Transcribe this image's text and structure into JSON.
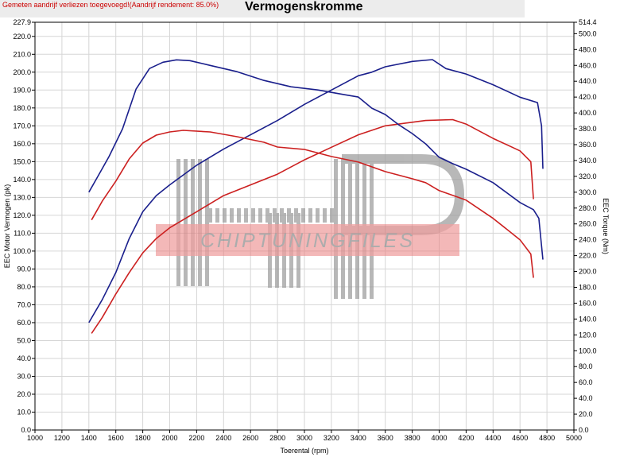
{
  "header": {
    "note": "Gemeten aandrijf verliezen toegevoegd!(Aandrijf rendement: 85.0%)",
    "title": "Vermogenskromme"
  },
  "watermark": {
    "text": "CHIPTUNINGFILES",
    "logo": "HP"
  },
  "colors": {
    "blue": "#1a1f8c",
    "red": "#cc2020",
    "grid": "#d6d6d6"
  },
  "chart_data": {
    "type": "line",
    "xlabel": "Toerental (rpm)",
    "ylabel": "EEC Motor Vermogen (pk)",
    "y2label": "EEC Torque (Nm)",
    "xlim": [
      1000,
      5000
    ],
    "ylim": [
      0,
      227.9
    ],
    "y2lim": [
      0,
      514.4
    ],
    "xticks": [
      "1000",
      "1200",
      "1400",
      "1600",
      "1800",
      "2000",
      "2200",
      "2400",
      "2600",
      "2800",
      "3000",
      "3200",
      "3400",
      "3600",
      "3800",
      "4000",
      "4200",
      "4400",
      "4600",
      "4800",
      "5000"
    ],
    "yticks": [
      "227.9",
      "220.0",
      "210.0",
      "200.0",
      "190.0",
      "180.0",
      "170.0",
      "160.0",
      "150.0",
      "140.0",
      "130.0",
      "120.0",
      "110.0",
      "100.0",
      "90.0",
      "80.0",
      "70.0",
      "60.0",
      "50.0",
      "40.0",
      "30.0",
      "20.0",
      "10.0",
      "0.0"
    ],
    "y2ticks": [
      "514.4",
      "500.0",
      "480.0",
      "460.0",
      "440.0",
      "420.0",
      "400.0",
      "380.0",
      "360.0",
      "340.0",
      "320.0",
      "300.0",
      "280.0",
      "260.0",
      "240.0",
      "220.0",
      "200.0",
      "180.0",
      "160.0",
      "140.0",
      "120.0",
      "100.0",
      "80.0",
      "60.0",
      "40.0",
      "20.0",
      "0.0"
    ],
    "series": [
      {
        "color": "#1a1f8c",
        "axis": "left",
        "points": [
          [
            1400,
            60
          ],
          [
            1500,
            73
          ],
          [
            1600,
            88
          ],
          [
            1700,
            107
          ],
          [
            1800,
            122
          ],
          [
            1900,
            131
          ],
          [
            2000,
            137
          ],
          [
            2200,
            148
          ],
          [
            2400,
            157
          ],
          [
            2600,
            165
          ],
          [
            2800,
            173
          ],
          [
            3000,
            182
          ],
          [
            3200,
            190
          ],
          [
            3400,
            198
          ],
          [
            3500,
            200
          ],
          [
            3600,
            203
          ],
          [
            3800,
            206
          ],
          [
            3950,
            207
          ],
          [
            4050,
            202
          ],
          [
            4200,
            199
          ],
          [
            4400,
            193
          ],
          [
            4600,
            186
          ],
          [
            4730,
            183
          ],
          [
            4760,
            170
          ],
          [
            4770,
            146
          ]
        ]
      },
      {
        "color": "#cc2020",
        "axis": "left",
        "points": [
          [
            1420,
            54
          ],
          [
            1500,
            63
          ],
          [
            1600,
            76
          ],
          [
            1700,
            88
          ],
          [
            1800,
            99
          ],
          [
            1900,
            107
          ],
          [
            2000,
            113
          ],
          [
            2200,
            122
          ],
          [
            2400,
            131
          ],
          [
            2600,
            137
          ],
          [
            2800,
            143
          ],
          [
            3000,
            151
          ],
          [
            3200,
            158
          ],
          [
            3400,
            165
          ],
          [
            3600,
            170
          ],
          [
            3800,
            172
          ],
          [
            3900,
            173
          ],
          [
            4100,
            173.5
          ],
          [
            4200,
            171
          ],
          [
            4400,
            163
          ],
          [
            4600,
            156
          ],
          [
            4680,
            150
          ],
          [
            4700,
            129
          ]
        ]
      },
      {
        "color": "#1a1f8c",
        "axis": "right",
        "points": [
          [
            1400,
            300
          ],
          [
            1450,
            315
          ],
          [
            1550,
            345
          ],
          [
            1650,
            380
          ],
          [
            1750,
            430
          ],
          [
            1850,
            456
          ],
          [
            1950,
            464
          ],
          [
            2050,
            467
          ],
          [
            2150,
            466
          ],
          [
            2300,
            460
          ],
          [
            2500,
            452
          ],
          [
            2700,
            441
          ],
          [
            2900,
            433
          ],
          [
            3100,
            429
          ],
          [
            3300,
            423
          ],
          [
            3400,
            420
          ],
          [
            3500,
            406
          ],
          [
            3600,
            398
          ],
          [
            3700,
            385
          ],
          [
            3800,
            374
          ],
          [
            3900,
            361
          ],
          [
            4000,
            344
          ],
          [
            4100,
            336
          ],
          [
            4200,
            329
          ],
          [
            4400,
            312
          ],
          [
            4600,
            287
          ],
          [
            4700,
            278
          ],
          [
            4740,
            267
          ],
          [
            4770,
            215
          ]
        ]
      },
      {
        "color": "#cc2020",
        "axis": "right",
        "points": [
          [
            1420,
            265
          ],
          [
            1500,
            289
          ],
          [
            1600,
            314
          ],
          [
            1700,
            342
          ],
          [
            1800,
            362
          ],
          [
            1900,
            372
          ],
          [
            2000,
            376
          ],
          [
            2100,
            378
          ],
          [
            2300,
            376
          ],
          [
            2500,
            370
          ],
          [
            2700,
            363
          ],
          [
            2800,
            357
          ],
          [
            3000,
            354
          ],
          [
            3200,
            345
          ],
          [
            3400,
            338
          ],
          [
            3600,
            326
          ],
          [
            3800,
            317
          ],
          [
            3900,
            312
          ],
          [
            4000,
            302
          ],
          [
            4200,
            290
          ],
          [
            4400,
            267
          ],
          [
            4600,
            240
          ],
          [
            4680,
            222
          ],
          [
            4700,
            192
          ]
        ]
      }
    ]
  }
}
